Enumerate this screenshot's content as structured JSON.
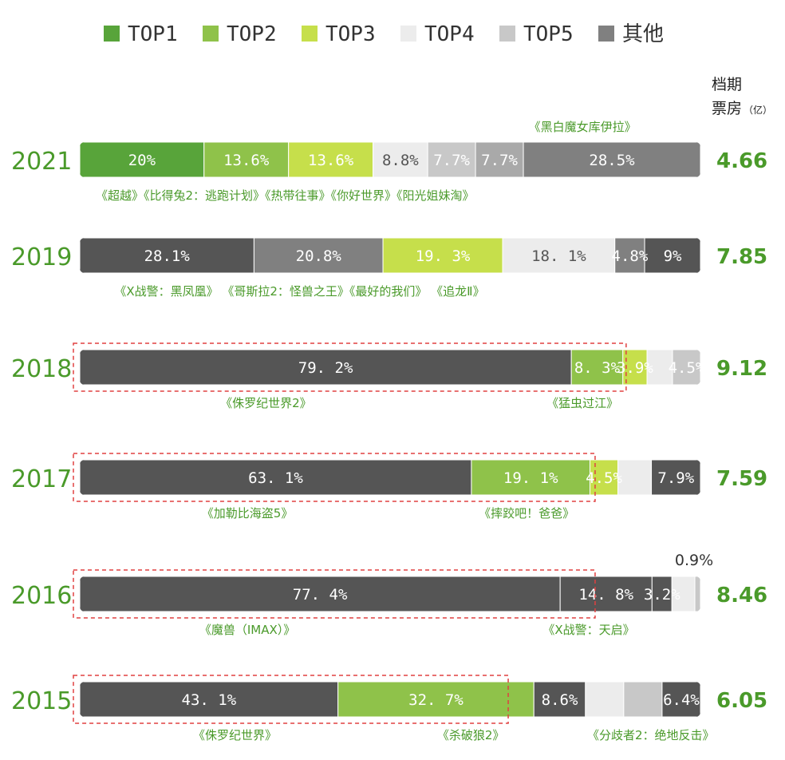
{
  "header": {
    "line1": "档期",
    "line2": "票房",
    "unit": "（亿）"
  },
  "legend": [
    {
      "label": "TOP1",
      "color": "#58a43a"
    },
    {
      "label": "TOP2",
      "color": "#8fc24a"
    },
    {
      "label": "TOP3",
      "color": "#c6df4b"
    },
    {
      "label": "TOP4",
      "color": "#ececec"
    },
    {
      "label": "TOP5",
      "color": "#c8c8c8"
    },
    {
      "label": "其他",
      "color": "#808080"
    }
  ],
  "chart_data": {
    "type": "bar",
    "orientation": "horizontal",
    "stacked": true,
    "normalized": true,
    "unit": "%",
    "categories": [
      "2021",
      "2019",
      "2018",
      "2017",
      "2016",
      "2015"
    ],
    "totals": [
      "4.66",
      "7.85",
      "9.12",
      "7.59",
      "8.46",
      "6.05"
    ],
    "rows": [
      {
        "year": "2021",
        "total": "4.66",
        "segments": [
          {
            "key": "TOP1",
            "value": 20,
            "label": "20%"
          },
          {
            "key": "TOP2",
            "value": 13.6,
            "label": "13.6%"
          },
          {
            "key": "TOP3",
            "value": 13.6,
            "label": "13.6%"
          },
          {
            "key": "TOP4",
            "value": 8.8,
            "label": "8.8%"
          },
          {
            "key": "TOP5",
            "value": 7.7,
            "label": "7.7%"
          },
          {
            "key": "TOP5b",
            "value": 7.7,
            "label": "7.7%"
          },
          {
            "key": "其他",
            "value": 28.5,
            "label": "28.5%"
          }
        ],
        "films_top": [
          {
            "text": "《黑白魔女库伊拉》",
            "at": 0.81
          }
        ],
        "films_bottom": [
          {
            "text": "《超越》《比得兔2：逃跑计划》《热带往事》《你好世界》《阳光姐妹淘》",
            "at": 0.0,
            "align": "start"
          }
        ],
        "highlight": null
      },
      {
        "year": "2019",
        "total": "7.85",
        "segments": [
          {
            "key": "其他",
            "value": 28.1,
            "label": "28.1%"
          },
          {
            "key": "TOP5",
            "value": 20.8,
            "label": "20.8%"
          },
          {
            "key": "TOP3",
            "value": 19.3,
            "label": "19. 3%"
          },
          {
            "key": "TOP4",
            "value": 18.1,
            "label": "18. 1%"
          },
          {
            "key": "TOP5",
            "value": 4.8,
            "label": "4.8%"
          },
          {
            "key": "其他",
            "value": 9,
            "label": "9%"
          }
        ],
        "films_top": [],
        "films_bottom": [
          {
            "text": "《X战警：黑凤凰》 《哥斯拉2：怪兽之王》《最好的我们》 《追龙Ⅱ》",
            "at": 0.03,
            "align": "start"
          }
        ],
        "highlight": null
      },
      {
        "year": "2018",
        "total": "9.12",
        "segments": [
          {
            "key": "其他",
            "value": 79.2,
            "label": "79. 2%"
          },
          {
            "key": "TOP2",
            "value": 8.3,
            "label": "8. 3%"
          },
          {
            "key": "TOP3",
            "value": 3.9,
            "label": "3.9%"
          },
          {
            "key": "TOP4",
            "value": 4.1,
            "label": ""
          },
          {
            "key": "TOP5",
            "value": 4.5,
            "label": "4.5%"
          }
        ],
        "films_top": [],
        "films_bottom": [
          {
            "text": "《侏罗纪世界2》",
            "at": 0.3
          },
          {
            "text": "《猛虫过江》",
            "at": 0.81
          }
        ],
        "highlight": 0.87
      },
      {
        "year": "2017",
        "total": "7.59",
        "segments": [
          {
            "key": "其他",
            "value": 63.1,
            "label": "63. 1%"
          },
          {
            "key": "TOP2",
            "value": 19.1,
            "label": "19. 1%"
          },
          {
            "key": "TOP3",
            "value": 4.5,
            "label": "4.5%"
          },
          {
            "key": "TOP4",
            "value": 5.4,
            "label": ""
          },
          {
            "key": "其他",
            "value": 7.9,
            "label": "7.9%"
          }
        ],
        "films_top": [],
        "films_bottom": [
          {
            "text": "《加勒比海盗5》",
            "at": 0.27
          },
          {
            "text": "《摔跤吧！爸爸》",
            "at": 0.72
          }
        ],
        "highlight": 0.82
      },
      {
        "year": "2016",
        "total": "8.46",
        "segments": [
          {
            "key": "其他",
            "value": 77.4,
            "label": "77. 4%"
          },
          {
            "key": "其他",
            "value": 14.8,
            "label": "14. 8%"
          },
          {
            "key": "其他",
            "value": 3.2,
            "label": "3.2%"
          },
          {
            "key": "TOP4",
            "value": 3.7,
            "label": ""
          },
          {
            "key": "TOP5",
            "value": 0.9,
            "label": ""
          }
        ],
        "annotation": "0.9%",
        "films_top": [],
        "films_bottom": [
          {
            "text": "《魔兽（IMAX）》",
            "at": 0.27
          },
          {
            "text": "《X战警：天启》",
            "at": 0.82
          }
        ],
        "highlight": 0.82
      },
      {
        "year": "2015",
        "total": "6.05",
        "segments": [
          {
            "key": "其他",
            "value": 43.1,
            "label": "43. 1%"
          },
          {
            "key": "TOP2",
            "value": 32.7,
            "label": "32. 7%"
          },
          {
            "key": "其他",
            "value": 8.6,
            "label": "8.6%"
          },
          {
            "key": "TOP4",
            "value": 6.4,
            "label": ""
          },
          {
            "key": "TOP5",
            "value": 6.4,
            "label": ""
          },
          {
            "key": "其他",
            "value": 6.4,
            "label": "6.4%"
          }
        ],
        "films_top": [],
        "films_bottom": [
          {
            "text": "《侏罗纪世界》",
            "at": 0.25
          },
          {
            "text": "《杀破狼2》",
            "at": 0.63
          },
          {
            "text": "《分歧者2：绝地反击》",
            "at": 0.92
          }
        ],
        "highlight": 0.68
      }
    ]
  }
}
